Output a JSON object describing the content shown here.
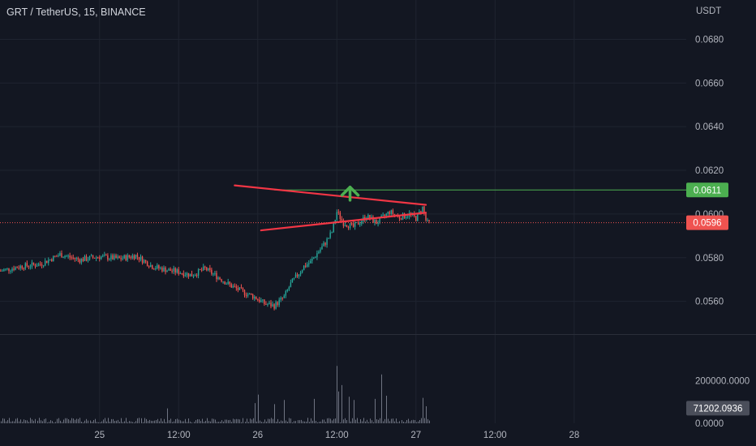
{
  "header": {
    "title": "GRT / TetherUS, 15, BINANCE",
    "currency": "USDT"
  },
  "colors": {
    "background": "#131722",
    "up": "#26a69a",
    "down": "#ef5350",
    "grid": "#1f2430",
    "text": "#b2b5be",
    "trendline": "#f23645",
    "resistance": "#4caf50",
    "arrow": "#4caf50"
  },
  "chart_data": {
    "type": "candlestick",
    "symbol": "GRT / TetherUS",
    "interval": "15",
    "exchange": "BINANCE",
    "price_axis": {
      "unit": "USDT",
      "ticks": [
        "0.0680",
        "0.0660",
        "0.0640",
        "0.0620",
        "0.0600",
        "0.0580",
        "0.0560"
      ],
      "range": [
        0.0545,
        0.0698
      ]
    },
    "volume_axis": {
      "ticks": [
        "200000.0000",
        "0.0000"
      ],
      "range": [
        0,
        420000
      ]
    },
    "time_axis": {
      "labels": [
        "25",
        "12:00",
        "26",
        "12:00",
        "27",
        "12:00",
        "28"
      ],
      "range_hours": [
        -15.1,
        89
      ]
    },
    "price_labels": [
      {
        "value": "0.0611",
        "kind": "resistance"
      },
      {
        "value": "0.0596",
        "kind": "last-price"
      }
    ],
    "volume_label": "71202.0936",
    "annotations": [
      {
        "kind": "resistance-line",
        "price": 0.0611
      },
      {
        "kind": "triangle-upper-trendline",
        "from": [
          20.5,
          0.06131
        ],
        "to": [
          49.5,
          0.06042
        ]
      },
      {
        "kind": "triangle-lower-trendline",
        "from": [
          24.5,
          0.05925
        ],
        "to": [
          49.5,
          0.06006
        ]
      },
      {
        "kind": "up-arrow",
        "hour": 38,
        "price_from": 0.06063,
        "price_to": 0.06123
      }
    ],
    "path": [
      [
        -15.0,
        0.0574
      ],
      [
        -12.0,
        0.0576
      ],
      [
        -9.0,
        0.0577
      ],
      [
        -6.0,
        0.05815
      ],
      [
        -3.0,
        0.0579
      ],
      [
        0.0,
        0.05805
      ],
      [
        3.0,
        0.05795
      ],
      [
        5.5,
        0.0581
      ],
      [
        8.0,
        0.0576
      ],
      [
        10.0,
        0.05745
      ],
      [
        12.0,
        0.05735
      ],
      [
        14.0,
        0.0572
      ],
      [
        16.0,
        0.0575
      ],
      [
        18.0,
        0.0571
      ],
      [
        20.0,
        0.0567
      ],
      [
        22.0,
        0.0564
      ],
      [
        23.5,
        0.0562
      ],
      [
        25.0,
        0.0559
      ],
      [
        26.5,
        0.0558
      ],
      [
        28.0,
        0.0562
      ],
      [
        29.0,
        0.0568
      ],
      [
        31.0,
        0.0576
      ],
      [
        32.0,
        0.0578
      ],
      [
        33.0,
        0.0582
      ],
      [
        33.8,
        0.0585
      ],
      [
        34.5,
        0.0588
      ],
      [
        35.3,
        0.0592
      ],
      [
        36.0,
        0.0601
      ],
      [
        37.0,
        0.0596
      ],
      [
        38.5,
        0.0594
      ],
      [
        40.5,
        0.0599
      ],
      [
        42.0,
        0.0596
      ],
      [
        44.0,
        0.0601
      ],
      [
        45.5,
        0.05985
      ],
      [
        47.0,
        0.06
      ],
      [
        48.0,
        0.0598
      ],
      [
        49.0,
        0.0603
      ],
      [
        49.6,
        0.0596
      ],
      [
        50.0,
        0.0596
      ]
    ],
    "volume_spikes": [
      {
        "hour": 10.3,
        "volume": 70000
      },
      {
        "hour": 23.5,
        "volume": 95000
      },
      {
        "hour": 24.1,
        "volume": 135000
      },
      {
        "hour": 26.4,
        "volume": 90000
      },
      {
        "hour": 28.0,
        "volume": 110000
      },
      {
        "hour": 32.4,
        "volume": 115000
      },
      {
        "hour": 35.9,
        "volume": 270000
      },
      {
        "hour": 36.3,
        "volume": 150000
      },
      {
        "hour": 36.8,
        "volume": 180000
      },
      {
        "hour": 37.7,
        "volume": 125000
      },
      {
        "hour": 38.4,
        "volume": 110000
      },
      {
        "hour": 41.7,
        "volume": 115000
      },
      {
        "hour": 42.8,
        "volume": 230000
      },
      {
        "hour": 43.5,
        "volume": 130000
      },
      {
        "hour": 48.9,
        "volume": 120000
      },
      {
        "hour": 49.4,
        "volume": 80000
      }
    ]
  }
}
